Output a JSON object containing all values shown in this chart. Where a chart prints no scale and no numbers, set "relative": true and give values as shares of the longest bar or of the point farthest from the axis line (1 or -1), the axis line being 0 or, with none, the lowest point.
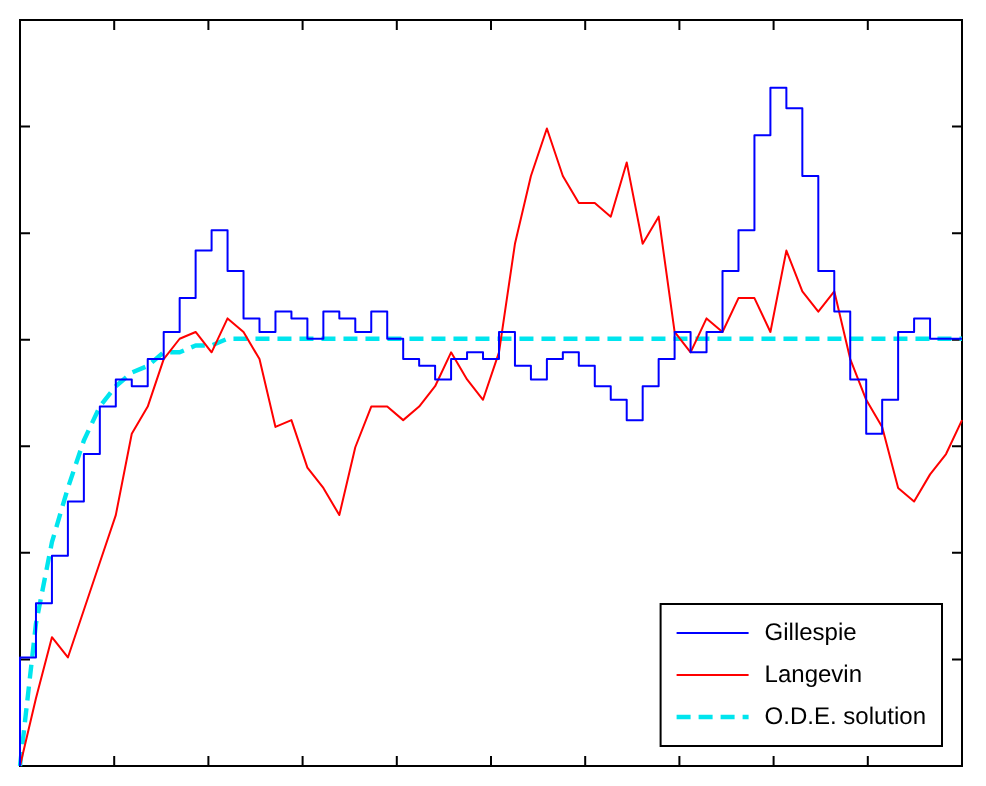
{
  "chart_data": {
    "type": "line",
    "relative": true,
    "grid": false,
    "legend": "bottom right",
    "marker": "none",
    "categories": [
      null,
      null,
      null,
      null,
      null,
      null,
      null,
      null,
      null,
      null,
      null,
      null,
      null,
      null,
      null,
      null,
      null,
      null,
      null,
      null,
      null,
      null,
      null,
      null,
      null,
      null,
      null,
      null,
      null,
      null,
      null,
      null,
      null,
      null,
      null,
      null,
      null,
      null,
      null,
      null,
      null,
      null,
      null,
      null,
      null,
      null,
      null,
      null,
      null,
      null,
      null,
      null,
      null,
      null,
      null,
      null,
      null,
      null,
      null,
      null
    ],
    "series": [
      {
        "name": "Gillespie",
        "type": "step",
        "color": "#0000ff",
        "values": [
          0,
          0.16,
          0.24,
          0.31,
          0.39,
          0.46,
          0.53,
          0.57,
          0.56,
          0.6,
          0.64,
          0.69,
          0.76,
          0.79,
          0.73,
          0.66,
          0.64,
          0.67,
          0.66,
          0.63,
          0.67,
          0.66,
          0.64,
          0.67,
          0.63,
          0.6,
          0.59,
          0.57,
          0.6,
          0.61,
          0.6,
          0.64,
          0.59,
          0.57,
          0.6,
          0.61,
          0.59,
          0.56,
          0.54,
          0.51,
          0.56,
          0.6,
          0.64,
          0.61,
          0.64,
          0.73,
          0.79,
          0.93,
          1,
          0.97,
          0.87,
          0.73,
          0.67,
          0.57,
          0.49,
          0.54,
          0.64,
          0.66,
          0.63,
          0.63
        ]
      },
      {
        "name": "Langevin",
        "type": "line",
        "color": "#ff0000",
        "values": [
          0,
          0.1,
          0.19,
          0.16,
          0.23,
          0.3,
          0.37,
          0.49,
          0.53,
          0.6,
          0.63,
          0.64,
          0.61,
          0.66,
          0.64,
          0.6,
          0.5,
          0.51,
          0.44,
          0.41,
          0.37,
          0.47,
          0.53,
          0.53,
          0.51,
          0.53,
          0.56,
          0.61,
          0.57,
          0.54,
          0.61,
          0.77,
          0.87,
          0.94,
          0.87,
          0.83,
          0.83,
          0.81,
          0.89,
          0.77,
          0.81,
          0.64,
          0.61,
          0.66,
          0.64,
          0.69,
          0.69,
          0.64,
          0.76,
          0.7,
          0.67,
          0.7,
          0.6,
          0.54,
          0.5,
          0.41,
          0.39,
          0.43,
          0.46,
          0.51
        ]
      },
      {
        "name": "O.D.E. solution",
        "type": "line",
        "color": "#00e5ee",
        "line_style": "dashed",
        "values": [
          0,
          0.21,
          0.33,
          0.41,
          0.48,
          0.53,
          0.56,
          0.58,
          0.59,
          0.61,
          0.61,
          0.62,
          0.62,
          0.63,
          0.63,
          0.63,
          0.63,
          0.63,
          0.63,
          0.63,
          0.63,
          0.63,
          0.63,
          0.63,
          0.63,
          0.63,
          0.63,
          0.63,
          0.63,
          0.63,
          0.63,
          0.63,
          0.63,
          0.63,
          0.63,
          0.63,
          0.63,
          0.63,
          0.63,
          0.63,
          0.63,
          0.63,
          0.63,
          0.63,
          0.63,
          0.63,
          0.63,
          0.63,
          0.63,
          0.63,
          0.63,
          0.63,
          0.63,
          0.63,
          0.63,
          0.63,
          0.63,
          0.63,
          0.63,
          0.63
        ]
      }
    ]
  }
}
